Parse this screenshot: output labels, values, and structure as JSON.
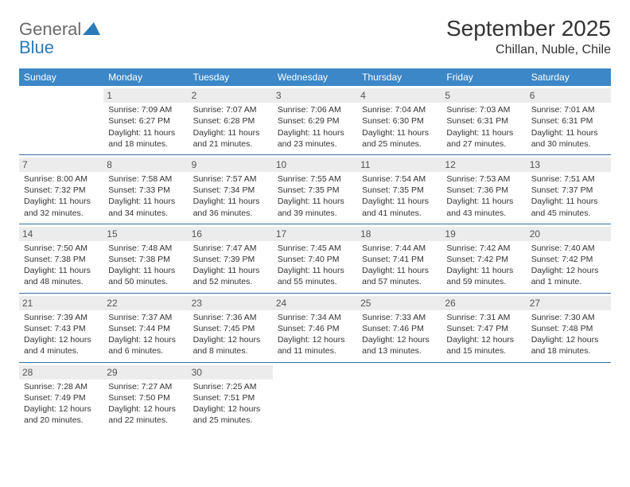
{
  "logo": {
    "text_gray": "General",
    "text_blue": "Blue",
    "gray_color": "#6a6a6a",
    "blue_color": "#2a7ab9",
    "triangle_color": "#2a7ab9"
  },
  "title": "September 2025",
  "location": "Chillan, Nuble, Chile",
  "colors": {
    "header_bg": "#3b87c8",
    "header_text": "#ffffff",
    "daynum_bg": "#ececec",
    "daynum_text": "#555555",
    "row_border": "#3b6f9e",
    "body_text": "#333333",
    "page_bg": "#ffffff"
  },
  "typography": {
    "title_fontsize": 28,
    "location_fontsize": 16,
    "weekday_fontsize": 12,
    "daynum_fontsize": 12,
    "body_fontsize": 10.5,
    "font_family": "Arial"
  },
  "weekdays": [
    "Sunday",
    "Monday",
    "Tuesday",
    "Wednesday",
    "Thursday",
    "Friday",
    "Saturday"
  ],
  "weeks": [
    [
      {
        "num": "",
        "lines": []
      },
      {
        "num": "1",
        "lines": [
          "Sunrise: 7:09 AM",
          "Sunset: 6:27 PM",
          "Daylight: 11 hours and 18 minutes."
        ]
      },
      {
        "num": "2",
        "lines": [
          "Sunrise: 7:07 AM",
          "Sunset: 6:28 PM",
          "Daylight: 11 hours and 21 minutes."
        ]
      },
      {
        "num": "3",
        "lines": [
          "Sunrise: 7:06 AM",
          "Sunset: 6:29 PM",
          "Daylight: 11 hours and 23 minutes."
        ]
      },
      {
        "num": "4",
        "lines": [
          "Sunrise: 7:04 AM",
          "Sunset: 6:30 PM",
          "Daylight: 11 hours and 25 minutes."
        ]
      },
      {
        "num": "5",
        "lines": [
          "Sunrise: 7:03 AM",
          "Sunset: 6:31 PM",
          "Daylight: 11 hours and 27 minutes."
        ]
      },
      {
        "num": "6",
        "lines": [
          "Sunrise: 7:01 AM",
          "Sunset: 6:31 PM",
          "Daylight: 11 hours and 30 minutes."
        ]
      }
    ],
    [
      {
        "num": "7",
        "lines": [
          "Sunrise: 8:00 AM",
          "Sunset: 7:32 PM",
          "Daylight: 11 hours and 32 minutes."
        ]
      },
      {
        "num": "8",
        "lines": [
          "Sunrise: 7:58 AM",
          "Sunset: 7:33 PM",
          "Daylight: 11 hours and 34 minutes."
        ]
      },
      {
        "num": "9",
        "lines": [
          "Sunrise: 7:57 AM",
          "Sunset: 7:34 PM",
          "Daylight: 11 hours and 36 minutes."
        ]
      },
      {
        "num": "10",
        "lines": [
          "Sunrise: 7:55 AM",
          "Sunset: 7:35 PM",
          "Daylight: 11 hours and 39 minutes."
        ]
      },
      {
        "num": "11",
        "lines": [
          "Sunrise: 7:54 AM",
          "Sunset: 7:35 PM",
          "Daylight: 11 hours and 41 minutes."
        ]
      },
      {
        "num": "12",
        "lines": [
          "Sunrise: 7:53 AM",
          "Sunset: 7:36 PM",
          "Daylight: 11 hours and 43 minutes."
        ]
      },
      {
        "num": "13",
        "lines": [
          "Sunrise: 7:51 AM",
          "Sunset: 7:37 PM",
          "Daylight: 11 hours and 45 minutes."
        ]
      }
    ],
    [
      {
        "num": "14",
        "lines": [
          "Sunrise: 7:50 AM",
          "Sunset: 7:38 PM",
          "Daylight: 11 hours and 48 minutes."
        ]
      },
      {
        "num": "15",
        "lines": [
          "Sunrise: 7:48 AM",
          "Sunset: 7:38 PM",
          "Daylight: 11 hours and 50 minutes."
        ]
      },
      {
        "num": "16",
        "lines": [
          "Sunrise: 7:47 AM",
          "Sunset: 7:39 PM",
          "Daylight: 11 hours and 52 minutes."
        ]
      },
      {
        "num": "17",
        "lines": [
          "Sunrise: 7:45 AM",
          "Sunset: 7:40 PM",
          "Daylight: 11 hours and 55 minutes."
        ]
      },
      {
        "num": "18",
        "lines": [
          "Sunrise: 7:44 AM",
          "Sunset: 7:41 PM",
          "Daylight: 11 hours and 57 minutes."
        ]
      },
      {
        "num": "19",
        "lines": [
          "Sunrise: 7:42 AM",
          "Sunset: 7:42 PM",
          "Daylight: 11 hours and 59 minutes."
        ]
      },
      {
        "num": "20",
        "lines": [
          "Sunrise: 7:40 AM",
          "Sunset: 7:42 PM",
          "Daylight: 12 hours and 1 minute."
        ]
      }
    ],
    [
      {
        "num": "21",
        "lines": [
          "Sunrise: 7:39 AM",
          "Sunset: 7:43 PM",
          "Daylight: 12 hours and 4 minutes."
        ]
      },
      {
        "num": "22",
        "lines": [
          "Sunrise: 7:37 AM",
          "Sunset: 7:44 PM",
          "Daylight: 12 hours and 6 minutes."
        ]
      },
      {
        "num": "23",
        "lines": [
          "Sunrise: 7:36 AM",
          "Sunset: 7:45 PM",
          "Daylight: 12 hours and 8 minutes."
        ]
      },
      {
        "num": "24",
        "lines": [
          "Sunrise: 7:34 AM",
          "Sunset: 7:46 PM",
          "Daylight: 12 hours and 11 minutes."
        ]
      },
      {
        "num": "25",
        "lines": [
          "Sunrise: 7:33 AM",
          "Sunset: 7:46 PM",
          "Daylight: 12 hours and 13 minutes."
        ]
      },
      {
        "num": "26",
        "lines": [
          "Sunrise: 7:31 AM",
          "Sunset: 7:47 PM",
          "Daylight: 12 hours and 15 minutes."
        ]
      },
      {
        "num": "27",
        "lines": [
          "Sunrise: 7:30 AM",
          "Sunset: 7:48 PM",
          "Daylight: 12 hours and 18 minutes."
        ]
      }
    ],
    [
      {
        "num": "28",
        "lines": [
          "Sunrise: 7:28 AM",
          "Sunset: 7:49 PM",
          "Daylight: 12 hours and 20 minutes."
        ]
      },
      {
        "num": "29",
        "lines": [
          "Sunrise: 7:27 AM",
          "Sunset: 7:50 PM",
          "Daylight: 12 hours and 22 minutes."
        ]
      },
      {
        "num": "30",
        "lines": [
          "Sunrise: 7:25 AM",
          "Sunset: 7:51 PM",
          "Daylight: 12 hours and 25 minutes."
        ]
      },
      {
        "num": "",
        "lines": []
      },
      {
        "num": "",
        "lines": []
      },
      {
        "num": "",
        "lines": []
      },
      {
        "num": "",
        "lines": []
      }
    ]
  ]
}
